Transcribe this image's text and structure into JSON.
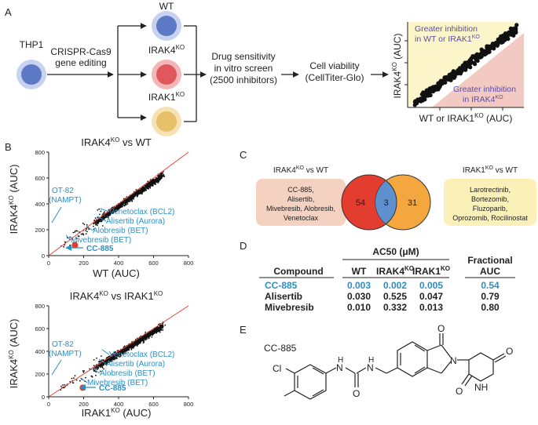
{
  "panel_a": {
    "letter": "A",
    "source_cell": "THP1",
    "method_line1": "CRISPR-Cas9",
    "method_line2": "gene editing",
    "cell_wt": "WT",
    "cell_irak4": "IRAK4",
    "cell_irak1": "IRAK1",
    "ko_sup": "KO",
    "screen_line1": "Drug sensitivity",
    "screen_line2": "in vitro screen",
    "screen_line3": "(2500 inhibitors)",
    "viability_line1": "Cell viability",
    "viability_line2": "(CellTiter-Glo)",
    "schematic_ylabel_prefix": "IRAK4",
    "schematic_ylabel_suffix": " (AUC)",
    "schematic_xlabel_prefix": "WT or IRAK1",
    "schematic_xlabel_suffix": " (AUC)",
    "upper_note_line1": "Greater inhibition",
    "upper_note_line2_prefix": "in WT or IRAK1",
    "lower_note_line1": "Greater inhibition",
    "lower_note_line2_prefix": "in IRAK4",
    "colors": {
      "wt": "#5b79c4",
      "irak4": "#e0585c",
      "irak1": "#e8c06a",
      "thp1": "#5b79c4"
    }
  },
  "panel_b": {
    "letter": "B",
    "plot1_title_prefix": "IRAK4",
    "plot1_title_suffix": " vs WT",
    "plot2_title_prefix": "IRAK4",
    "plot2_title_mid": " vs IRAK1",
    "ylabel_prefix": "IRAK4",
    "ylabel_suffix": " (AUC)",
    "plot1_xlabel": "WT (AUC)",
    "plot2_xlabel_prefix": "IRAK1",
    "plot2_xlabel_suffix": " (AUC)",
    "annotations": {
      "ot82_line1": "OT-82",
      "ot82_line2": "(NAMPT)",
      "venetoclax": "Venetoclax (BCL2)",
      "alisertib": "Alisertib (Aurora)",
      "alobresib": "Alobresib (BET)",
      "mivebresib": "Mivebresib (BET)",
      "cc885": "CC-885"
    }
  },
  "panel_c": {
    "letter": "C",
    "left_title_prefix": "IRAK4",
    "left_title_suffix": " vs WT",
    "left_list": [
      "CC-885,",
      "Alisertib,",
      "Mivebresib, Alobresib,",
      "Venetoclax"
    ],
    "right_title_prefix": "IRAK1",
    "right_title_suffix": " vs WT",
    "right_list": [
      "Larotrectinib,",
      "Bortezomib,",
      "Fluzoparib,",
      "Oprozomib, Rocilinostat"
    ],
    "venn": {
      "left_only": "54",
      "overlap": "3",
      "right_only": "31"
    }
  },
  "panel_d": {
    "letter": "D",
    "header_group": "AC50 (μM)",
    "col_compound": "Compound",
    "col_wt": "WT",
    "col_irak4_prefix": "IRAK4",
    "col_irak1_prefix": "IRAK1",
    "col_frac_line1": "Fractional",
    "col_frac_line2": "AUC",
    "rows": [
      {
        "compound": "CC-885",
        "wt": "0.003",
        "irak4": "0.002",
        "irak1": "0.005",
        "frac": "0.54"
      },
      {
        "compound": "Alisertib",
        "wt": "0.030",
        "irak4": "0.525",
        "irak1": "0.047",
        "frac": "0.79"
      },
      {
        "compound": "Mivebresib",
        "wt": "0.010",
        "irak4": "0.332",
        "irak1": "0.013",
        "frac": "0.80"
      }
    ]
  },
  "panel_e": {
    "letter": "E",
    "compound_name": "CC-885",
    "atoms": {
      "cl": "Cl",
      "nh1": "N",
      "h1": "H",
      "o1": "O",
      "nh2": "N",
      "h2": "H",
      "n_ring": "N",
      "o2": "O",
      "o3": "O",
      "o4": "O",
      "nh3": "NH"
    }
  },
  "chart_data": [
    {
      "type": "scatter",
      "title": "IRAK4KO vs WT",
      "xlabel": "WT (AUC)",
      "ylabel": "IRAK4KO (AUC)",
      "xlim": [
        0,
        800
      ],
      "ylim": [
        0,
        800
      ],
      "xticks": [
        "0",
        "200",
        "400",
        "600",
        "800"
      ],
      "yticks": [
        "0",
        "200",
        "400",
        "600",
        "800"
      ],
      "identity_line": true,
      "highlight": {
        "name": "CC-885",
        "x": 150,
        "y": 80
      }
    },
    {
      "type": "scatter",
      "title": "IRAK4KO vs IRAK1KO",
      "xlabel": "IRAK1KO (AUC)",
      "ylabel": "IRAK4KO (AUC)",
      "xlim": [
        0,
        800
      ],
      "ylim": [
        0,
        800
      ],
      "xticks": [
        "0",
        "200",
        "400",
        "600",
        "800"
      ],
      "yticks": [
        "0",
        "200",
        "400",
        "600",
        "800"
      ],
      "identity_line": true,
      "highlight": {
        "name": "CC-885",
        "x": 195,
        "y": 80
      }
    },
    {
      "type": "venn",
      "sets": [
        "IRAK4KO vs WT",
        "IRAK1KO vs WT"
      ],
      "values": {
        "left_only": 54,
        "overlap": 3,
        "right_only": 31
      }
    }
  ]
}
